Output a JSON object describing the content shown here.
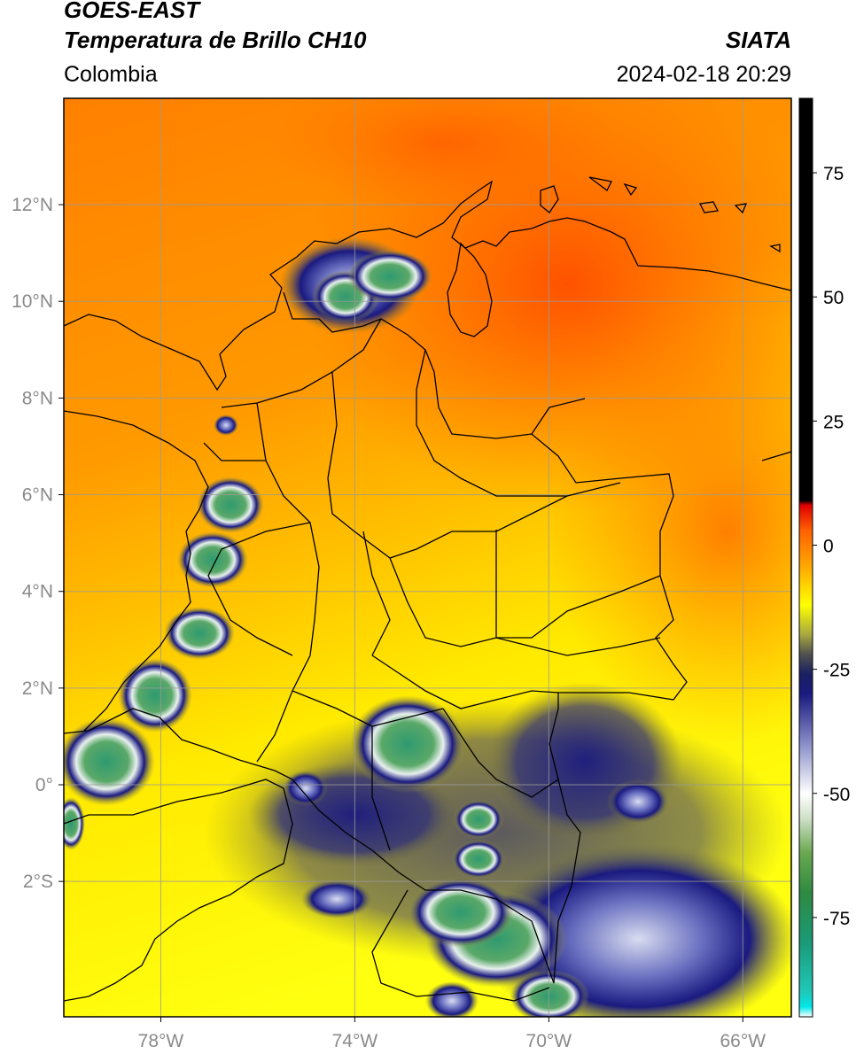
{
  "header": {
    "satellite": "GOES-EAST",
    "product": "Temperatura de Brillo CH10",
    "region": "Colombia",
    "brand": "SIATA",
    "timestamp": "2024-02-18 20:29"
  },
  "axes": {
    "lat_labels": [
      "12°N",
      "10°N",
      "8°N",
      "6°N",
      "4°N",
      "2°N",
      "0°",
      "2°S"
    ],
    "lat_values": [
      12,
      10,
      8,
      6,
      4,
      2,
      0,
      -2
    ],
    "lon_labels": [
      "78°W",
      "74°W",
      "70°W",
      "66°W"
    ],
    "lon_values": [
      -78,
      -74,
      -70,
      -66
    ],
    "lat_range": [
      -4.8,
      14.2
    ],
    "lon_range": [
      -80,
      -65
    ]
  },
  "colorbar": {
    "labels": [
      "75",
      "50",
      "25",
      "0",
      "-25",
      "-50",
      "-75"
    ],
    "values": [
      75,
      50,
      25,
      0,
      -25,
      -50,
      -75
    ],
    "range": [
      -95,
      90
    ],
    "stops": [
      {
        "v": -95,
        "c": "#ffffff"
      },
      {
        "v": -93,
        "c": "#00e8e8"
      },
      {
        "v": -90,
        "c": "#20c8b8"
      },
      {
        "v": -80,
        "c": "#1a9a78"
      },
      {
        "v": -70,
        "c": "#2e8a40"
      },
      {
        "v": -62,
        "c": "#6aa850"
      },
      {
        "v": -55,
        "c": "#cfe0c8"
      },
      {
        "v": -50,
        "c": "#ffffff"
      },
      {
        "v": -40,
        "c": "#8a8ec8"
      },
      {
        "v": -30,
        "c": "#1a1a80"
      },
      {
        "v": -26,
        "c": "#1a2060"
      },
      {
        "v": -22,
        "c": "#505050"
      },
      {
        "v": -18,
        "c": "#a8a840"
      },
      {
        "v": -12,
        "c": "#ffff00"
      },
      {
        "v": -5,
        "c": "#ffb000"
      },
      {
        "v": 3,
        "c": "#ff6000"
      },
      {
        "v": 8,
        "c": "#e00000"
      },
      {
        "v": 9,
        "c": "#000000"
      },
      {
        "v": 90,
        "c": "#000000"
      }
    ]
  },
  "colors": {
    "warm_field": "#ff8a00",
    "hot_field": "#ff5a00",
    "cool_field": "#ffe600",
    "cold_cloud": "#1a1a80",
    "very_cold_cloud": "#2e9a70",
    "border": "#000000",
    "grid": "#9a9a9a"
  }
}
